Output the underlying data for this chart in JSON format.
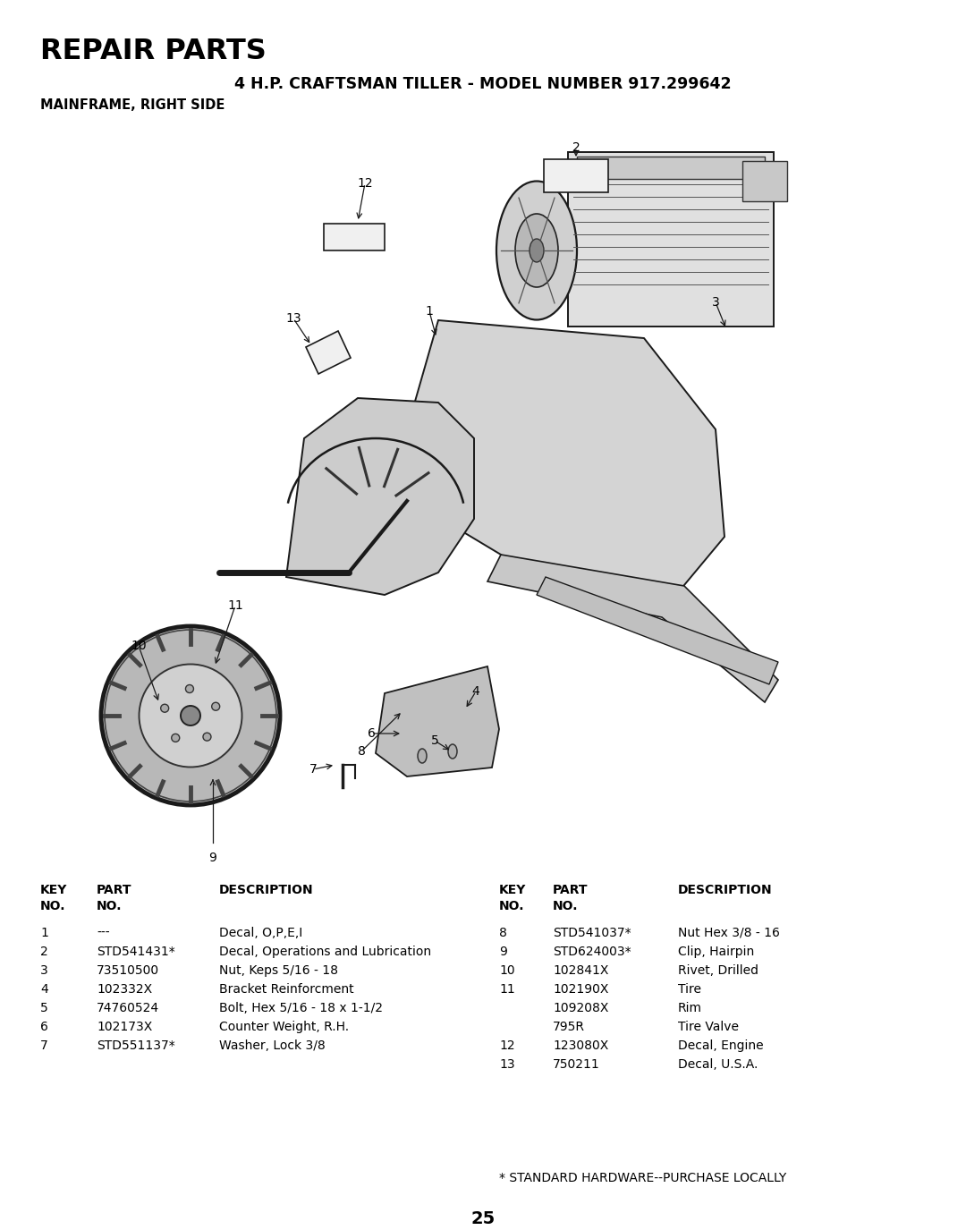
{
  "title_main": "REPAIR PARTS",
  "title_sub": "4 H.P. CRAFTSMAN TILLER - MODEL NUMBER 917.299642",
  "title_sub2": "MAINFRAME, RIGHT SIDE",
  "page_number": "25",
  "footnote": "* STANDARD HARDWARE--PURCHASE LOCALLY",
  "parts_left": [
    {
      "key": "1",
      "part": "---",
      "desc": "Decal, O,P,E,I"
    },
    {
      "key": "2",
      "part": "STD541431*",
      "desc": "Decal, Operations and Lubrication"
    },
    {
      "key": "3",
      "part": "73510500",
      "desc": "Nut, Keps 5/16 - 18"
    },
    {
      "key": "4",
      "part": "102332X",
      "desc": "Bracket Reinforcment"
    },
    {
      "key": "5",
      "part": "74760524",
      "desc": "Bolt, Hex 5/16 - 18 x 1-1/2"
    },
    {
      "key": "6",
      "part": "102173X",
      "desc": "Counter Weight, R.H."
    },
    {
      "key": "7",
      "part": "STD551137*",
      "desc": "Washer, Lock 3/8"
    }
  ],
  "parts_right": [
    {
      "key": "8",
      "part": "STD541037*",
      "desc": "Nut Hex 3/8 - 16"
    },
    {
      "key": "9",
      "part": "STD624003*",
      "desc": "Clip, Hairpin"
    },
    {
      "key": "10",
      "part": "102841X",
      "desc": "Rivet, Drilled"
    },
    {
      "key": "11",
      "part": "102190X",
      "desc": "Tire"
    },
    {
      "key": "",
      "part": "109208X",
      "desc": "Rim"
    },
    {
      "key": "",
      "part": "795R",
      "desc": "Tire Valve"
    },
    {
      "key": "12",
      "part": "123080X",
      "desc": "Decal, Engine"
    },
    {
      "key": "13",
      "part": "750211",
      "desc": "Decal, U.S.A."
    }
  ],
  "bg_color": "#ffffff",
  "text_color": "#000000",
  "lc": "#1a1a1a"
}
